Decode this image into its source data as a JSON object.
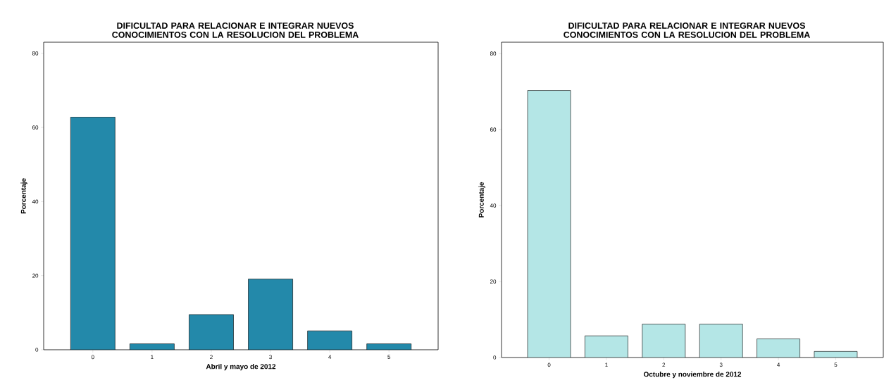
{
  "chart_data": [
    {
      "type": "bar",
      "title": "DIFICULTAD PARA RELACIONAR E INTEGRAR NUEVOS CONOCIMIENTOS CON LA RESOLUCION DEL PROBLEMA",
      "xlabel": "Abril y mayo de 2012",
      "ylabel": "Porcentaje",
      "categories": [
        "0",
        "1",
        "2",
        "3",
        "4",
        "5"
      ],
      "values": [
        62.8,
        1.6,
        9.5,
        19.1,
        5.1,
        1.6
      ],
      "color": "#2389aa",
      "ylim": [
        0,
        83
      ],
      "yticks": [
        0,
        20,
        40,
        60,
        80
      ]
    },
    {
      "type": "bar",
      "title": "DIFICULTAD PARA RELACIONAR E INTEGRAR NUEVOS CONOCIMIENTOS CON LA RESOLUCION DEL PROBLEMA",
      "xlabel": "Octubre y noviembre de 2012",
      "ylabel": "Porcentaje",
      "categories": [
        "0",
        "1",
        "2",
        "3",
        "4",
        "5"
      ],
      "values": [
        70.3,
        5.7,
        8.8,
        8.8,
        4.9,
        1.6
      ],
      "color": "#b4e6e6",
      "ylim": [
        0,
        83
      ],
      "yticks": [
        0,
        20,
        40,
        60,
        80
      ]
    }
  ]
}
